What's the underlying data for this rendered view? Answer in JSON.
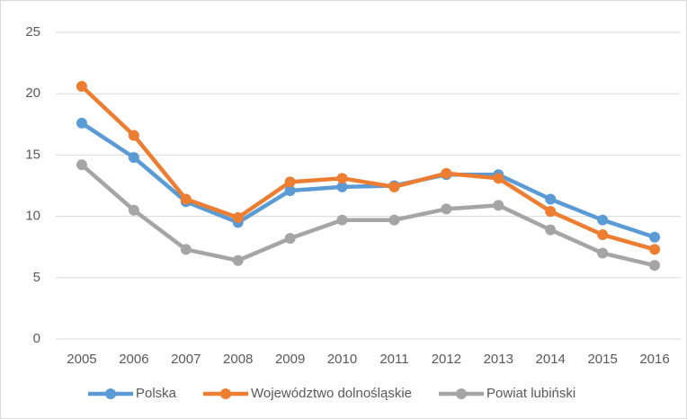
{
  "chart_data": {
    "type": "line",
    "categories": [
      "2005",
      "2006",
      "2007",
      "2008",
      "2009",
      "2010",
      "2011",
      "2012",
      "2013",
      "2014",
      "2015",
      "2016"
    ],
    "series": [
      {
        "name": "Polska",
        "color": "#5b9bd5",
        "values": [
          17.6,
          14.8,
          11.2,
          9.5,
          12.1,
          12.4,
          12.5,
          13.4,
          13.4,
          11.4,
          9.7,
          8.3
        ]
      },
      {
        "name": "Województwo dolnośląskie",
        "color": "#ed7d31",
        "values": [
          20.6,
          16.6,
          11.4,
          9.9,
          12.8,
          13.1,
          12.4,
          13.5,
          13.1,
          10.4,
          8.5,
          7.3
        ]
      },
      {
        "name": "Powiat lubiński",
        "color": "#a5a5a5",
        "values": [
          14.2,
          10.5,
          7.3,
          6.4,
          8.2,
          9.7,
          9.7,
          10.6,
          10.9,
          8.9,
          7.0,
          6.0
        ]
      }
    ],
    "ylim": [
      0,
      25
    ],
    "yticks": [
      0,
      5,
      10,
      15,
      20,
      25
    ],
    "grid": true,
    "legend": "bottom"
  }
}
